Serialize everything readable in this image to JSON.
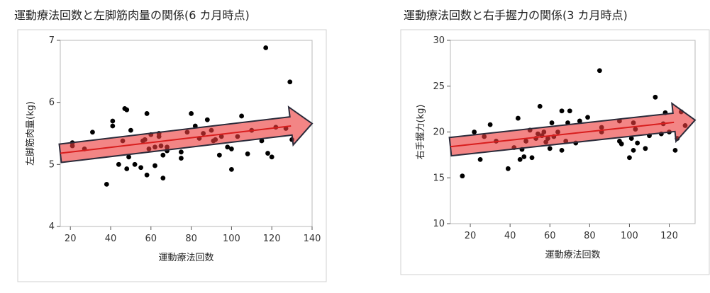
{
  "chart_data": [
    {
      "type": "scatter",
      "title": "運動療法回数と左脚筋肉量の関係(6 カ月時点)",
      "xlabel": "運動療法回数",
      "ylabel": "左脚筋肉量(kg)",
      "xlim": [
        15,
        140
      ],
      "ylim": [
        4,
        7
      ],
      "xticks": [
        "20",
        "40",
        "60",
        "80",
        "100",
        "120",
        "140"
      ],
      "yticks": [
        "4",
        "5",
        "6",
        "7"
      ],
      "grid": false,
      "points": [
        [
          21,
          5.3
        ],
        [
          21,
          5.35
        ],
        [
          27,
          5.25
        ],
        [
          31,
          5.52
        ],
        [
          38,
          4.68
        ],
        [
          41,
          5.7
        ],
        [
          41,
          5.62
        ],
        [
          44,
          5.0
        ],
        [
          46,
          5.38
        ],
        [
          47,
          5.9
        ],
        [
          48,
          5.88
        ],
        [
          48,
          4.93
        ],
        [
          49,
          5.12
        ],
        [
          50,
          5.55
        ],
        [
          52,
          5.0
        ],
        [
          55,
          4.95
        ],
        [
          56,
          5.38
        ],
        [
          57,
          5.4
        ],
        [
          58,
          5.82
        ],
        [
          58,
          4.83
        ],
        [
          59,
          5.25
        ],
        [
          60,
          5.48
        ],
        [
          62,
          5.28
        ],
        [
          62,
          4.98
        ],
        [
          64,
          5.5
        ],
        [
          64,
          5.45
        ],
        [
          65,
          5.3
        ],
        [
          66,
          5.15
        ],
        [
          66,
          4.78
        ],
        [
          68,
          5.28
        ],
        [
          68,
          5.22
        ],
        [
          75,
          5.2
        ],
        [
          75,
          5.1
        ],
        [
          78,
          5.52
        ],
        [
          80,
          5.82
        ],
        [
          82,
          5.62
        ],
        [
          84,
          5.42
        ],
        [
          86,
          5.5
        ],
        [
          88,
          5.72
        ],
        [
          90,
          5.55
        ],
        [
          91,
          5.38
        ],
        [
          92,
          5.4
        ],
        [
          94,
          5.15
        ],
        [
          95,
          5.45
        ],
        [
          98,
          5.28
        ],
        [
          100,
          4.92
        ],
        [
          100,
          5.25
        ],
        [
          103,
          5.45
        ],
        [
          105,
          5.78
        ],
        [
          108,
          5.17
        ],
        [
          110,
          5.55
        ],
        [
          115,
          5.38
        ],
        [
          117,
          6.88
        ],
        [
          118,
          5.18
        ],
        [
          120,
          5.12
        ],
        [
          122,
          5.6
        ],
        [
          127,
          5.58
        ],
        [
          129,
          6.33
        ],
        [
          130,
          5.4
        ]
      ],
      "trend": {
        "x": [
          15,
          140
        ],
        "y": [
          5.18,
          5.66
        ]
      }
    },
    {
      "type": "scatter",
      "title": "運動療法回数と右手握力の関係(3 カ月時点)",
      "xlabel": "運動療法回数",
      "ylabel": "右手握力(kg)",
      "xlim": [
        10,
        133
      ],
      "ylim": [
        10,
        30
      ],
      "xticks": [
        "20",
        "40",
        "60",
        "80",
        "100",
        "120"
      ],
      "yticks": [
        "10",
        "15",
        "20",
        "25",
        "30"
      ],
      "grid": false,
      "points": [
        [
          16,
          15.2
        ],
        [
          22,
          20.0
        ],
        [
          25,
          17.0
        ],
        [
          27,
          19.5
        ],
        [
          30,
          20.8
        ],
        [
          33,
          19.0
        ],
        [
          39,
          16.0
        ],
        [
          42,
          18.3
        ],
        [
          44,
          21.5
        ],
        [
          45,
          17.0
        ],
        [
          46,
          18.1
        ],
        [
          47,
          17.3
        ],
        [
          48,
          19.0
        ],
        [
          50,
          20.2
        ],
        [
          51,
          17.2
        ],
        [
          53,
          19.3
        ],
        [
          54,
          19.8
        ],
        [
          55,
          22.8
        ],
        [
          56,
          19.6
        ],
        [
          57,
          20.0
        ],
        [
          58,
          18.9
        ],
        [
          59,
          19.3
        ],
        [
          60,
          18.2
        ],
        [
          61,
          21.0
        ],
        [
          62,
          19.5
        ],
        [
          64,
          20.0
        ],
        [
          66,
          22.3
        ],
        [
          66,
          18.0
        ],
        [
          68,
          19.0
        ],
        [
          69,
          21.0
        ],
        [
          70,
          22.3
        ],
        [
          73,
          18.8
        ],
        [
          75,
          21.2
        ],
        [
          79,
          21.6
        ],
        [
          85,
          26.7
        ],
        [
          86,
          20.5
        ],
        [
          86,
          20.0
        ],
        [
          95,
          19.0
        ],
        [
          95,
          21.2
        ],
        [
          96,
          18.7
        ],
        [
          100,
          17.2
        ],
        [
          101,
          19.3
        ],
        [
          102,
          18.0
        ],
        [
          102,
          21.0
        ],
        [
          103,
          20.3
        ],
        [
          104,
          18.8
        ],
        [
          108,
          18.2
        ],
        [
          110,
          19.6
        ],
        [
          113,
          23.8
        ],
        [
          116,
          19.8
        ],
        [
          117,
          20.9
        ],
        [
          118,
          22.1
        ],
        [
          120,
          20.0
        ],
        [
          123,
          18.0
        ],
        [
          124,
          19.3
        ],
        [
          126,
          22.2
        ],
        [
          128,
          20.7
        ]
      ],
      "trend": {
        "x": [
          10,
          133
        ],
        "y": [
          18.4,
          21.3
        ]
      }
    }
  ]
}
